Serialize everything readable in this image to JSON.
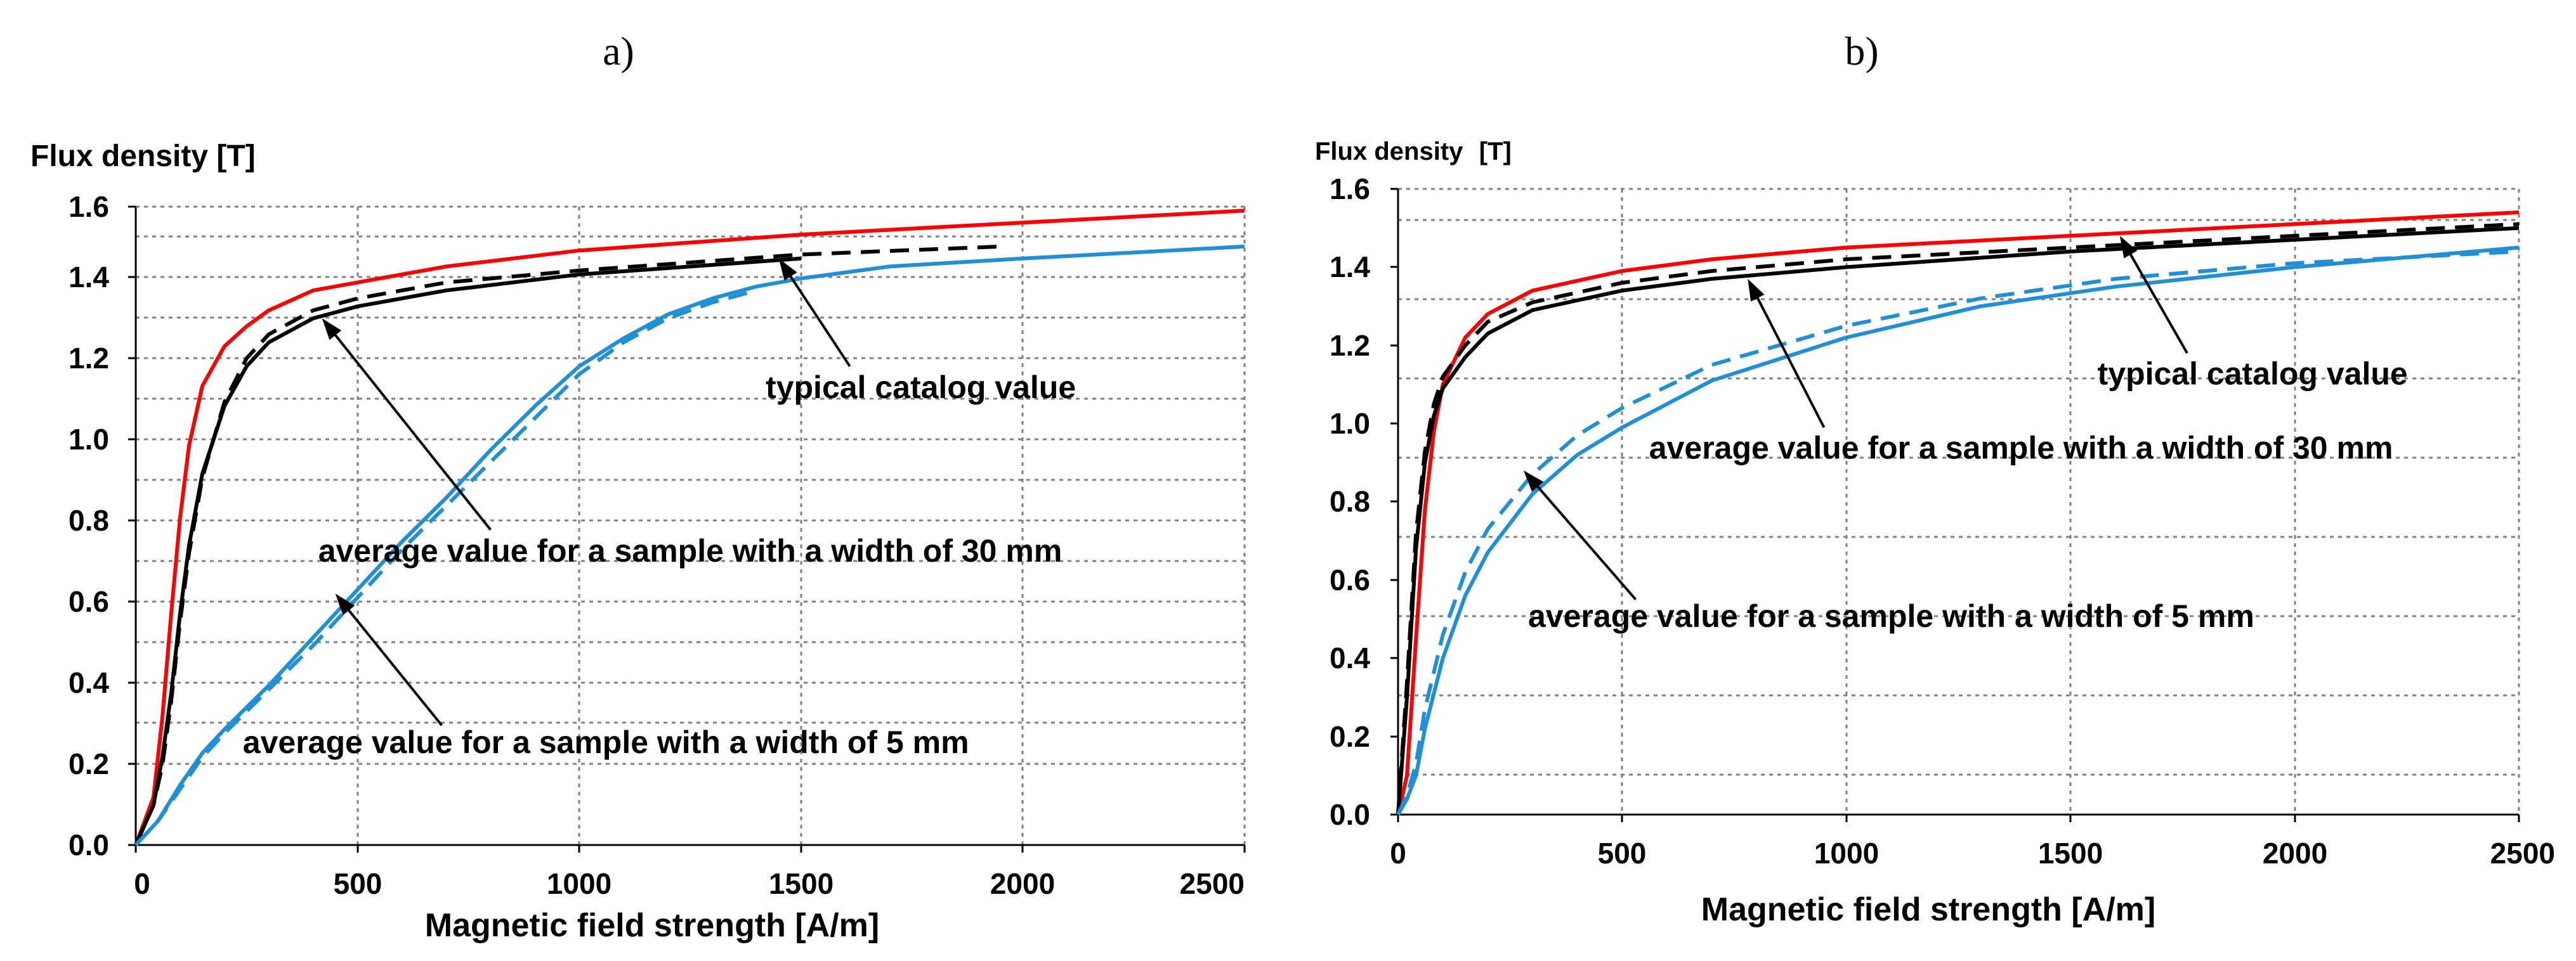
{
  "chart_data": [
    {
      "panel": "a)",
      "type": "line",
      "title": "",
      "ylabel": "Flux density [T]",
      "xlabel": "Magnetic field strength [A/m]",
      "xlim": [
        0,
        2500
      ],
      "ylim": [
        0,
        1.6
      ],
      "xticks": [
        0,
        500,
        1000,
        1500,
        2000,
        2500
      ],
      "yticks": [
        "0.0",
        "0.2",
        "0.4",
        "0.6",
        "0.8",
        "1.0",
        "1.2",
        "1.4",
        "1.6"
      ],
      "grid": true,
      "series": [
        {
          "name": "typical catalog value",
          "color": "#ff0000",
          "dash": false,
          "x": [
            0,
            40,
            60,
            80,
            100,
            120,
            150,
            200,
            250,
            300,
            400,
            500,
            700,
            1000,
            1500,
            2000,
            2500
          ],
          "y": [
            0.0,
            0.12,
            0.32,
            0.58,
            0.82,
            1.0,
            1.15,
            1.25,
            1.3,
            1.34,
            1.39,
            1.41,
            1.45,
            1.49,
            1.53,
            1.56,
            1.59
          ]
        },
        {
          "name": "average value for a sample with a width of 30 mm",
          "color": "#000000",
          "dash": false,
          "x": [
            0,
            40,
            60,
            80,
            100,
            120,
            150,
            200,
            250,
            300,
            400,
            500,
            700,
            1000,
            1500
          ],
          "y": [
            0.0,
            0.1,
            0.22,
            0.38,
            0.58,
            0.75,
            0.93,
            1.1,
            1.2,
            1.26,
            1.32,
            1.35,
            1.39,
            1.43,
            1.47
          ]
        },
        {
          "name": "average value for a sample with a width of 30 mm (dashed)",
          "color": "#000000",
          "dash": true,
          "x": [
            0,
            40,
            60,
            80,
            100,
            120,
            150,
            200,
            250,
            300,
            400,
            500,
            700,
            1000,
            1500,
            1950
          ],
          "y": [
            0.0,
            0.1,
            0.2,
            0.36,
            0.56,
            0.73,
            0.92,
            1.11,
            1.22,
            1.28,
            1.34,
            1.37,
            1.41,
            1.44,
            1.48,
            1.5
          ]
        },
        {
          "name": "average value for a sample with a width of 5 mm",
          "color": "#1f8fd8",
          "dash": false,
          "x": [
            0,
            50,
            100,
            150,
            200,
            300,
            400,
            500,
            600,
            700,
            800,
            900,
            1000,
            1100,
            1200,
            1300,
            1400,
            1500,
            1700,
            2000,
            2500
          ],
          "y": [
            0.0,
            0.06,
            0.15,
            0.23,
            0.29,
            0.4,
            0.52,
            0.64,
            0.76,
            0.87,
            0.99,
            1.1,
            1.2,
            1.27,
            1.33,
            1.37,
            1.4,
            1.42,
            1.45,
            1.47,
            1.5
          ]
        },
        {
          "name": "average value for a sample with a width of 5 mm (dashed)",
          "color": "#1f8fd8",
          "dash": true,
          "x": [
            0,
            50,
            100,
            150,
            200,
            300,
            400,
            500,
            600,
            700,
            800,
            900,
            1000,
            1100,
            1200,
            1300,
            1400
          ],
          "y": [
            0.0,
            0.06,
            0.14,
            0.22,
            0.28,
            0.39,
            0.5,
            0.62,
            0.74,
            0.85,
            0.96,
            1.07,
            1.18,
            1.26,
            1.32,
            1.36,
            1.39
          ]
        }
      ],
      "annotations": [
        {
          "text": "typical catalog value",
          "x": 1770,
          "y": 1.12,
          "anchor": "middle",
          "arrow_from": [
            1610,
            1.2
          ],
          "arrow_to": [
            1450,
            1.47
          ]
        },
        {
          "text": "average value for a sample with a width of 30 mm",
          "x": 1250,
          "y": 0.71,
          "anchor": "middle",
          "arrow_from": [
            800,
            0.79
          ],
          "arrow_to": [
            420,
            1.32
          ]
        },
        {
          "text": "average value for a sample with a width of 5 mm",
          "x": 1060,
          "y": 0.23,
          "anchor": "middle",
          "arrow_from": [
            690,
            0.3
          ],
          "arrow_to": [
            450,
            0.63
          ]
        }
      ]
    },
    {
      "panel": "b)",
      "type": "line",
      "title": "",
      "ylabel_main": "Flux density",
      "ylabel_unit": "[T]",
      "xlabel": "Magnetic field strength [A/m]",
      "xlim": [
        0,
        2500
      ],
      "ylim": [
        0,
        1.6
      ],
      "xticks": [
        0,
        500,
        1000,
        1500,
        2000,
        2500
      ],
      "yticks": [
        "0.0",
        "0.2",
        "0.4",
        "0.6",
        "0.8",
        "1.0",
        "1.2",
        "1.4",
        "1.6"
      ],
      "grid": true,
      "series": [
        {
          "name": "typical catalog value",
          "color": "#ff0000",
          "dash": false,
          "x": [
            0,
            20,
            40,
            60,
            80,
            100,
            150,
            200,
            300,
            500,
            700,
            1000,
            1500,
            2000,
            2500
          ],
          "y": [
            0.0,
            0.1,
            0.45,
            0.78,
            0.98,
            1.1,
            1.22,
            1.28,
            1.34,
            1.39,
            1.42,
            1.45,
            1.48,
            1.51,
            1.54
          ]
        },
        {
          "name": "average value for a sample with a width of 30 mm",
          "color": "#000000",
          "dash": false,
          "x": [
            0,
            20,
            40,
            60,
            80,
            100,
            150,
            200,
            300,
            500,
            700,
            1000,
            1500,
            2000,
            2500
          ],
          "y": [
            0.0,
            0.3,
            0.68,
            0.9,
            1.02,
            1.09,
            1.17,
            1.23,
            1.29,
            1.34,
            1.37,
            1.4,
            1.44,
            1.47,
            1.5
          ]
        },
        {
          "name": "average value for a sample with a width of 30 mm (dashed)",
          "color": "#000000",
          "dash": true,
          "x": [
            0,
            20,
            40,
            60,
            80,
            100,
            150,
            200,
            300,
            500,
            700,
            1000,
            1500,
            2000,
            2500
          ],
          "y": [
            0.0,
            0.34,
            0.72,
            0.93,
            1.05,
            1.12,
            1.2,
            1.26,
            1.31,
            1.36,
            1.39,
            1.42,
            1.45,
            1.48,
            1.51
          ]
        },
        {
          "name": "average value for a sample with a width of 5 mm",
          "color": "#1f8fd8",
          "dash": false,
          "x": [
            0,
            20,
            40,
            60,
            100,
            150,
            200,
            300,
            400,
            500,
            700,
            1000,
            1300,
            1600,
            2000,
            2500
          ],
          "y": [
            0.0,
            0.04,
            0.1,
            0.22,
            0.4,
            0.56,
            0.67,
            0.82,
            0.92,
            0.99,
            1.11,
            1.22,
            1.3,
            1.35,
            1.4,
            1.45
          ]
        },
        {
          "name": "average value for a sample with a width of 5 mm (dashed)",
          "color": "#1f8fd8",
          "dash": true,
          "x": [
            0,
            20,
            40,
            60,
            100,
            150,
            200,
            300,
            400,
            500,
            700,
            1000,
            1300,
            1600,
            2000,
            2500
          ],
          "y": [
            0.0,
            0.05,
            0.13,
            0.27,
            0.46,
            0.62,
            0.73,
            0.87,
            0.97,
            1.04,
            1.15,
            1.25,
            1.32,
            1.37,
            1.41,
            1.44
          ]
        }
      ],
      "annotations": [
        {
          "text": "typical catalog value",
          "x": 1560,
          "y": 1.1,
          "anchor": "start",
          "arrow_from": [
            1760,
            1.18
          ],
          "arrow_to": [
            1610,
            1.48
          ]
        },
        {
          "text": "average value for a sample with a width of 30 mm",
          "x": 560,
          "y": 0.91,
          "anchor": "start",
          "arrow_from": [
            950,
            0.99
          ],
          "arrow_to": [
            780,
            1.37
          ]
        },
        {
          "text": "average value for a sample with a width of 5 mm",
          "x": 290,
          "y": 0.48,
          "anchor": "start",
          "arrow_from": [
            530,
            0.55
          ],
          "arrow_to": [
            280,
            0.88
          ]
        }
      ]
    }
  ]
}
